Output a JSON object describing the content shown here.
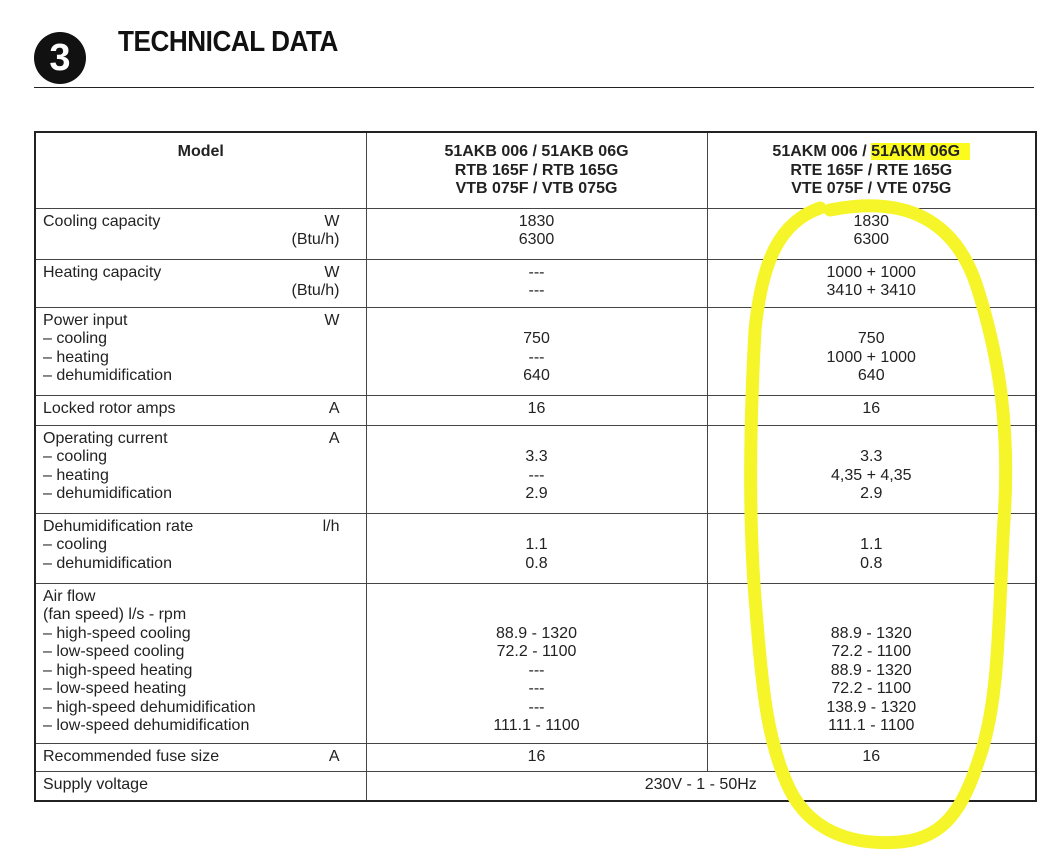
{
  "header": {
    "section_number": "3",
    "title": "TECHNICAL DATA"
  },
  "table": {
    "header": {
      "model_label": "Model",
      "col1": [
        "51AKB 006 / 51AKB 06G",
        "RTB 165F / RTB 165G",
        "VTB 075F / VTB 075G"
      ],
      "col2_line1_prefix": "51AKM 006 / ",
      "col2_line1_highlighted": "51AKM 06G",
      "col2": [
        "RTE 165F / RTE 165G",
        "VTE 075F / VTE 075G"
      ]
    },
    "rows": [
      {
        "param": [
          "Cooling capacity"
        ],
        "units": [
          "W",
          "(Btu/h)"
        ],
        "col1": [
          "1830",
          "6300"
        ],
        "col2": [
          "1830",
          "6300"
        ]
      },
      {
        "param": [
          "Heating capacity"
        ],
        "units": [
          "W",
          "(Btu/h)"
        ],
        "col1": [
          "---",
          "---"
        ],
        "col2": [
          "1000 + 1000",
          "3410 + 3410"
        ]
      },
      {
        "param": [
          "Power input",
          "– cooling",
          "– heating",
          "– dehumidification"
        ],
        "units": [
          "W"
        ],
        "col1": [
          "",
          "750",
          "---",
          "640"
        ],
        "col2": [
          "",
          "750",
          "1000 + 1000",
          "640"
        ]
      },
      {
        "param": [
          "Locked rotor amps"
        ],
        "units": [
          "A"
        ],
        "col1": [
          "16"
        ],
        "col2": [
          "16"
        ]
      },
      {
        "param": [
          "Operating current",
          "– cooling",
          "– heating",
          "– dehumidification"
        ],
        "units": [
          "A"
        ],
        "col1": [
          "",
          "3.3",
          "---",
          "2.9"
        ],
        "col2": [
          "",
          "3.3",
          "4,35 + 4,35",
          "2.9"
        ]
      },
      {
        "param": [
          "Dehumidification rate",
          "– cooling",
          "– dehumidification"
        ],
        "units": [
          "l/h"
        ],
        "col1": [
          "",
          "1.1",
          "0.8"
        ],
        "col2": [
          "",
          "1.1",
          "0.8"
        ]
      },
      {
        "param": [
          "Air flow",
          "(fan speed) l/s - rpm",
          "– high-speed cooling",
          "– low-speed cooling",
          "– high-speed heating",
          "– low-speed heating",
          "– high-speed dehumidification",
          "– low-speed dehumidification"
        ],
        "units": [],
        "col1": [
          "",
          "",
          "88.9 - 1320",
          "72.2 - 1100",
          "---",
          "---",
          "---",
          "111.1 - 1100"
        ],
        "col2": [
          "",
          "",
          "88.9 - 1320",
          "72.2 - 1100",
          "88.9 - 1320",
          "72.2 - 1100",
          "138.9 - 1320",
          "111.1 - 1100"
        ]
      },
      {
        "param": [
          "Recommended fuse size"
        ],
        "units": [
          "A"
        ],
        "col1": [
          "16"
        ],
        "col2": [
          "16"
        ]
      }
    ],
    "supply": {
      "param": "Supply voltage",
      "value": "230V - 1 - 50Hz"
    }
  },
  "annotation": {
    "highlight_color": "#fbfb1e",
    "circle_color": "#f5f52a"
  }
}
